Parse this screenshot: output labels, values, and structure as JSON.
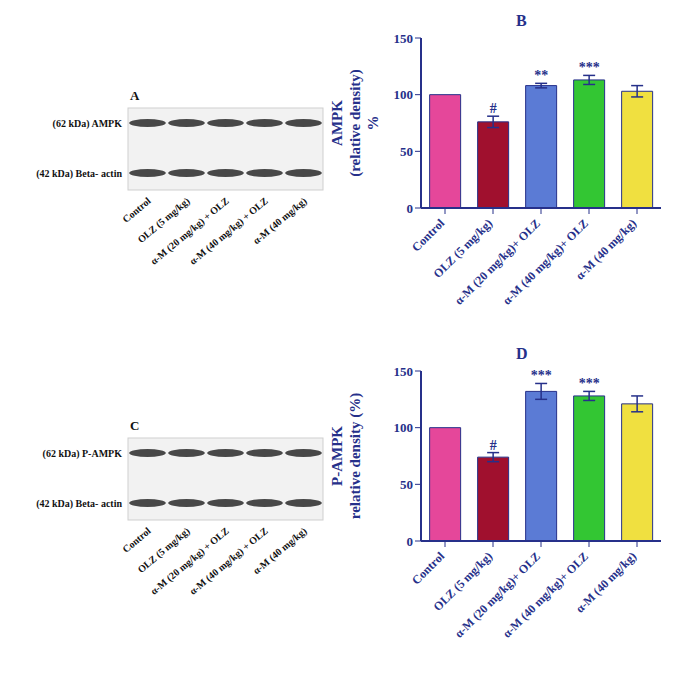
{
  "chart_data": [
    {
      "type": "bar",
      "title": "B",
      "y_label": [
        "AMPK",
        "(relative density)",
        "%"
      ],
      "categories": [
        "Control",
        "OLZ (5 mg/kg)",
        "α-M (20 mg/kg)+ OLZ",
        "α-M (40 mg/kg)+ OLZ",
        "α-M (40 mg/kg)"
      ],
      "values": [
        100,
        76,
        108,
        113,
        103
      ],
      "errors": [
        0,
        5,
        2,
        4,
        5
      ],
      "annotations": [
        null,
        "#",
        "**",
        "***",
        null
      ],
      "colors": [
        "#e5479a",
        "#a0102e",
        "#5b7bd5",
        "#33c633",
        "#f0e040"
      ],
      "ylim": [
        0,
        150
      ],
      "yticks": [
        0,
        50,
        100,
        150
      ]
    },
    {
      "type": "bar",
      "title": "D",
      "y_label": [
        "P-AMPK",
        "relative density (%)"
      ],
      "categories": [
        "Control",
        "OLZ (5 mg/kg)",
        "α-M (20 mg/kg)+ OLZ",
        "α-M (40 mg/kg)+ OLZ",
        "α-M (40 mg/kg)"
      ],
      "values": [
        100,
        74,
        132,
        128,
        121
      ],
      "errors": [
        0,
        4,
        7,
        4,
        7
      ],
      "annotations": [
        null,
        "#",
        "***",
        "***",
        null
      ],
      "colors": [
        "#e5479a",
        "#a0102e",
        "#5b7bd5",
        "#33c633",
        "#f0e040"
      ],
      "ylim": [
        0,
        150
      ],
      "yticks": [
        0,
        50,
        100,
        150
      ]
    }
  ],
  "blots": [
    {
      "title": "A",
      "bands": [
        "(62 kDa) AMPK",
        "(42 kDa) Beta- actin"
      ],
      "lanes": [
        "Control",
        "OLZ (5 mg/kg)",
        "α-M (20 mg/kg) + OLZ",
        "α-M (40 mg/kg) + OLZ",
        "α-M (40 mg/kg)"
      ]
    },
    {
      "title": "C",
      "bands": [
        "(62 kDa) P-AMPK",
        "(42 kDa) Beta- actin"
      ],
      "lanes": [
        "Control",
        "OLZ (5 mg/kg)",
        "α-M (20 mg/kg) + OLZ",
        "α-M (40 mg/kg) + OLZ",
        "α-M (40 mg/kg)"
      ]
    }
  ]
}
